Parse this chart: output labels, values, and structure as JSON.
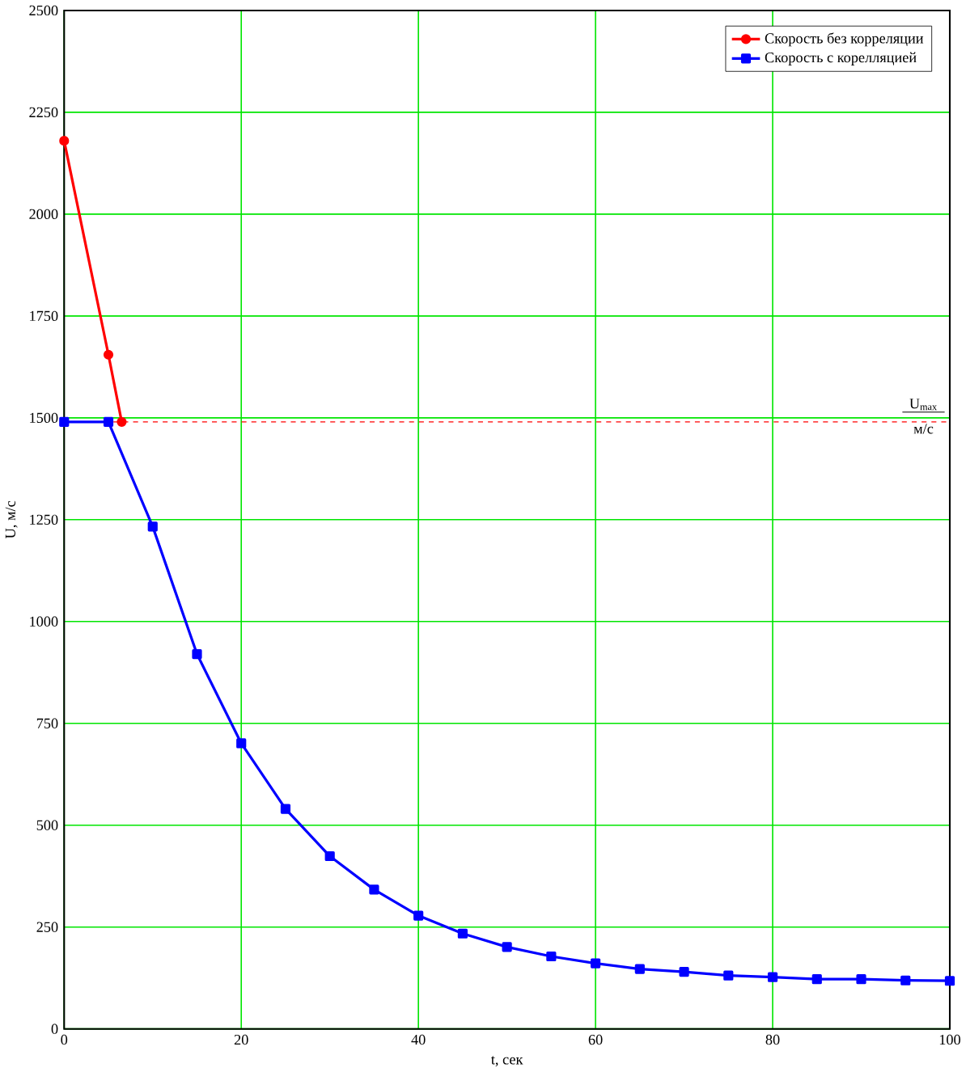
{
  "chart_data": {
    "type": "line",
    "xlabel": "t, сек",
    "ylabel": "U, м/с",
    "x": [
      0,
      5,
      10,
      15,
      20,
      25,
      30,
      35,
      40,
      45,
      50,
      55,
      60,
      65,
      70,
      75,
      80,
      85,
      90,
      95,
      100
    ],
    "series": [
      {
        "name": "Скорость без корреляции",
        "color": "#ff0000",
        "marker": "circle",
        "x": [
          0,
          5,
          6.5
        ],
        "values": [
          2180,
          1655,
          1490
        ]
      },
      {
        "name": "Скорость с корелляцией",
        "color": "#0000ff",
        "marker": "square",
        "values": [
          1490,
          1490,
          1233,
          920,
          701,
          540,
          424,
          342,
          278,
          234,
          201,
          178,
          161,
          147,
          140,
          131,
          127,
          122,
          122,
          119,
          118
        ]
      }
    ],
    "xlim": [
      0,
      100
    ],
    "xticks": [
      0,
      20,
      40,
      60,
      80,
      100
    ],
    "ylim": [
      0,
      2500
    ],
    "yticks": [
      0,
      250,
      500,
      750,
      1000,
      1250,
      1500,
      1750,
      2000,
      2250,
      2500
    ],
    "grid": true,
    "legend": "top right",
    "ref_lines": [
      {
        "axis": "y",
        "value": 1490,
        "label": "U$_{max}$",
        "color": "#ff0000",
        "line_style": "dashed"
      }
    ],
    "annotations": [
      "м/с"
    ]
  }
}
